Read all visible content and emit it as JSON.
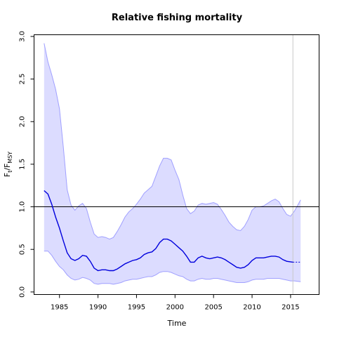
{
  "chart_data": {
    "type": "line",
    "title": "Relative fishing mortality",
    "xlabel": "Time",
    "ylabel_main": "F",
    "ylabel_sub1": "t",
    "ylabel_sep": "/F",
    "ylabel_sub2": "MSY",
    "xlim": [
      1981.7,
      2018.7
    ],
    "ylim": [
      -0.03,
      3.02
    ],
    "xticks": [
      1985,
      1990,
      1995,
      2000,
      2005,
      2010,
      2015
    ],
    "yticks": [
      0.0,
      0.5,
      1.0,
      1.5,
      2.0,
      2.5,
      3.0
    ],
    "xtick_labels": [
      "1985",
      "1990",
      "1995",
      "2000",
      "2005",
      "2010",
      "2015"
    ],
    "ytick_labels": [
      "0.0",
      "0.5",
      "1.0",
      "1.5",
      "2.0",
      "2.5",
      "3.0"
    ],
    "reference_line_y": 1.0,
    "vertical_marker_x": 2015.3,
    "colors": {
      "estimate": "#0000dd",
      "band_fill": "#dcdcff",
      "band_edge": "#a0a0ff",
      "reference": "#000000",
      "marker": "#c8c8c8"
    },
    "series": [
      {
        "role": "estimate",
        "x": [
          1983.0,
          1983.5,
          1984.0,
          1984.5,
          1985.0,
          1985.5,
          1986.0,
          1986.5,
          1987.0,
          1987.5,
          1988.0,
          1988.5,
          1989.0,
          1989.5,
          1990.0,
          1990.5,
          1991.0,
          1991.5,
          1992.0,
          1992.5,
          1993.0,
          1993.5,
          1994.0,
          1994.5,
          1995.0,
          1995.5,
          1996.0,
          1996.5,
          1997.0,
          1997.5,
          1998.0,
          1998.5,
          1999.0,
          1999.5,
          2000.0,
          2000.5,
          2001.0,
          2001.5,
          2002.0,
          2002.5,
          2003.0,
          2003.5,
          2004.0,
          2004.5,
          2005.0,
          2005.5,
          2006.0,
          2006.5,
          2007.0,
          2007.5,
          2008.0,
          2008.5,
          2009.0,
          2009.5,
          2010.0,
          2010.5,
          2011.0,
          2011.5,
          2012.0,
          2012.5,
          2013.0,
          2013.5,
          2014.0,
          2014.5,
          2015.3
        ],
        "values": [
          1.19,
          1.15,
          1.03,
          0.88,
          0.75,
          0.6,
          0.46,
          0.39,
          0.37,
          0.39,
          0.43,
          0.42,
          0.36,
          0.28,
          0.25,
          0.26,
          0.26,
          0.25,
          0.25,
          0.27,
          0.3,
          0.33,
          0.35,
          0.37,
          0.38,
          0.4,
          0.44,
          0.46,
          0.47,
          0.51,
          0.58,
          0.62,
          0.62,
          0.6,
          0.56,
          0.52,
          0.48,
          0.42,
          0.35,
          0.35,
          0.4,
          0.42,
          0.4,
          0.39,
          0.4,
          0.41,
          0.4,
          0.38,
          0.35,
          0.32,
          0.29,
          0.28,
          0.29,
          0.32,
          0.37,
          0.4,
          0.4,
          0.4,
          0.41,
          0.42,
          0.42,
          0.41,
          0.38,
          0.36,
          0.35
        ]
      },
      {
        "role": "estimate-projection",
        "x": [
          2015.3,
          2015.8,
          2016.3
        ],
        "values": [
          0.35,
          0.35,
          0.35
        ]
      }
    ],
    "confidence_band": {
      "x": [
        1983.0,
        1983.5,
        1984.0,
        1984.5,
        1985.0,
        1985.5,
        1986.0,
        1986.5,
        1987.0,
        1987.5,
        1988.0,
        1988.5,
        1989.0,
        1989.5,
        1990.0,
        1990.5,
        1991.0,
        1991.5,
        1992.0,
        1992.5,
        1993.0,
        1993.5,
        1994.0,
        1994.5,
        1995.0,
        1995.5,
        1996.0,
        1996.5,
        1997.0,
        1997.5,
        1998.0,
        1998.5,
        1999.0,
        1999.5,
        2000.0,
        2000.5,
        2001.0,
        2001.5,
        2002.0,
        2002.5,
        2003.0,
        2003.5,
        2004.0,
        2004.5,
        2005.0,
        2005.5,
        2006.0,
        2006.5,
        2007.0,
        2007.5,
        2008.0,
        2008.5,
        2009.0,
        2009.5,
        2010.0,
        2010.5,
        2011.0,
        2011.5,
        2012.0,
        2012.5,
        2013.0,
        2013.5,
        2014.0,
        2014.5,
        2015.0,
        2015.5,
        2016.3
      ],
      "upper": [
        2.92,
        2.7,
        2.55,
        2.38,
        2.15,
        1.7,
        1.2,
        1.02,
        0.96,
        1.01,
        1.04,
        0.98,
        0.82,
        0.68,
        0.64,
        0.65,
        0.64,
        0.62,
        0.64,
        0.71,
        0.79,
        0.88,
        0.94,
        0.98,
        1.03,
        1.09,
        1.16,
        1.2,
        1.24,
        1.36,
        1.48,
        1.57,
        1.57,
        1.55,
        1.43,
        1.32,
        1.14,
        0.98,
        0.92,
        0.95,
        1.02,
        1.04,
        1.03,
        1.04,
        1.05,
        1.03,
        0.97,
        0.9,
        0.82,
        0.77,
        0.73,
        0.72,
        0.77,
        0.85,
        0.96,
        1.0,
        1.0,
        1.01,
        1.04,
        1.07,
        1.09,
        1.06,
        0.98,
        0.91,
        0.89,
        0.95,
        1.08
      ],
      "lower": [
        0.48,
        0.48,
        0.43,
        0.36,
        0.3,
        0.26,
        0.2,
        0.16,
        0.14,
        0.15,
        0.17,
        0.16,
        0.14,
        0.1,
        0.09,
        0.1,
        0.1,
        0.1,
        0.09,
        0.1,
        0.11,
        0.13,
        0.14,
        0.15,
        0.15,
        0.16,
        0.17,
        0.18,
        0.18,
        0.2,
        0.23,
        0.24,
        0.24,
        0.23,
        0.21,
        0.19,
        0.18,
        0.15,
        0.13,
        0.13,
        0.15,
        0.16,
        0.15,
        0.15,
        0.16,
        0.16,
        0.15,
        0.14,
        0.13,
        0.12,
        0.11,
        0.11,
        0.11,
        0.12,
        0.14,
        0.15,
        0.15,
        0.15,
        0.16,
        0.16,
        0.16,
        0.16,
        0.15,
        0.14,
        0.13,
        0.13,
        0.12
      ]
    }
  }
}
